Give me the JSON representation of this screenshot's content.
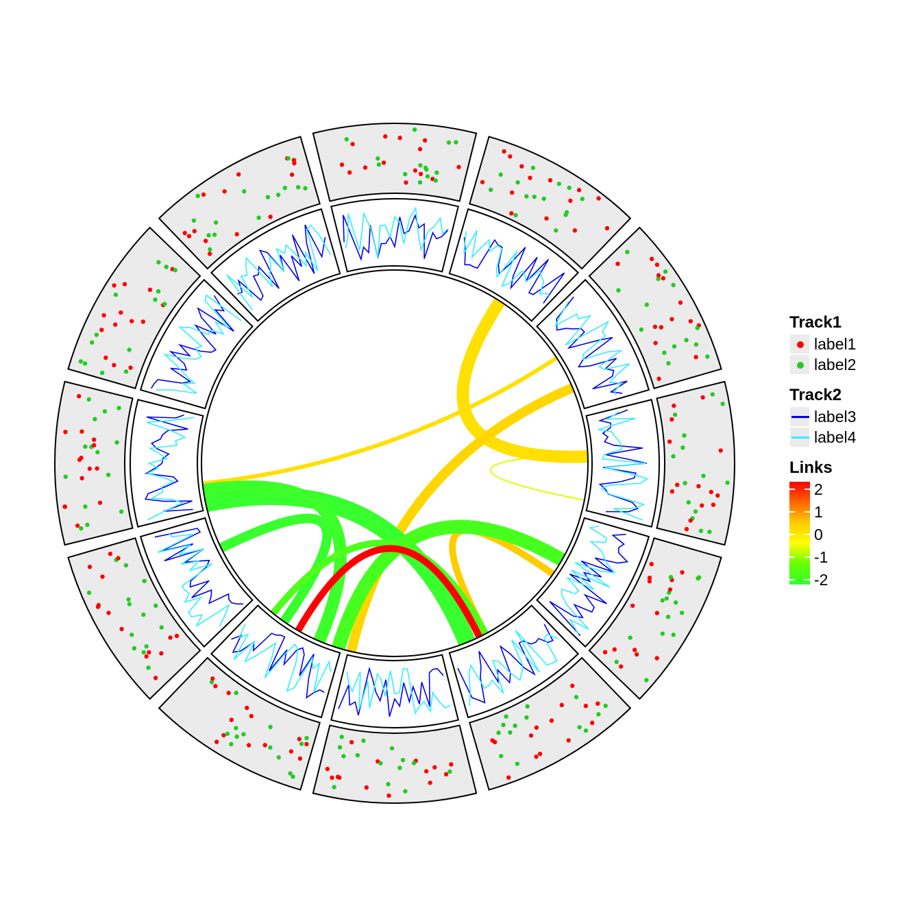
{
  "chart_data": {
    "type": "circos",
    "sectors": 12,
    "tracks": [
      {
        "name": "Track1",
        "kind": "scatter",
        "series": [
          {
            "name": "label1",
            "color": "#ff0000"
          },
          {
            "name": "label2",
            "color": "#22cc22"
          }
        ]
      },
      {
        "name": "Track2",
        "kind": "line",
        "series": [
          {
            "name": "label3",
            "color": "#0000ee"
          },
          {
            "name": "label4",
            "color": "#33eeff"
          }
        ]
      }
    ],
    "links": {
      "name": "Links",
      "scale": {
        "min": -2,
        "max": 2,
        "ticks": [
          "2",
          "1",
          "0",
          "-1",
          "-2"
        ]
      },
      "items": [
        {
          "from": 101,
          "to": 87,
          "value": -0.2
        },
        {
          "from": 33,
          "to": 88,
          "value": 0.3
        },
        {
          "from": 57,
          "to": 264,
          "value": 0.3
        },
        {
          "from": 67,
          "to": 193,
          "value": 0.4
        },
        {
          "from": 125,
          "to": 152,
          "value": 0.5
        },
        {
          "from": 258,
          "to": 158,
          "value": -1.9
        },
        {
          "from": 244,
          "to": 215,
          "value": -1.9
        },
        {
          "from": 120,
          "to": 197,
          "value": -1.6
        },
        {
          "from": 262,
          "to": 203,
          "value": -1.8
        },
        {
          "from": 152,
          "to": 219,
          "value": -1.5
        },
        {
          "from": 154,
          "to": 210,
          "value": 2.0
        }
      ]
    }
  },
  "legend": {
    "track1": {
      "title": "Track1",
      "items": [
        {
          "label": "label1",
          "color": "#ff0000"
        },
        {
          "label": "label2",
          "color": "#22cc22"
        }
      ]
    },
    "track2": {
      "title": "Track2",
      "items": [
        {
          "label": "label3",
          "color": "#0000ee"
        },
        {
          "label": "label4",
          "color": "#33eeff"
        }
      ]
    },
    "links": {
      "title": "Links",
      "ticks": [
        "2",
        "1",
        "0",
        "-1",
        "-2"
      ]
    }
  }
}
